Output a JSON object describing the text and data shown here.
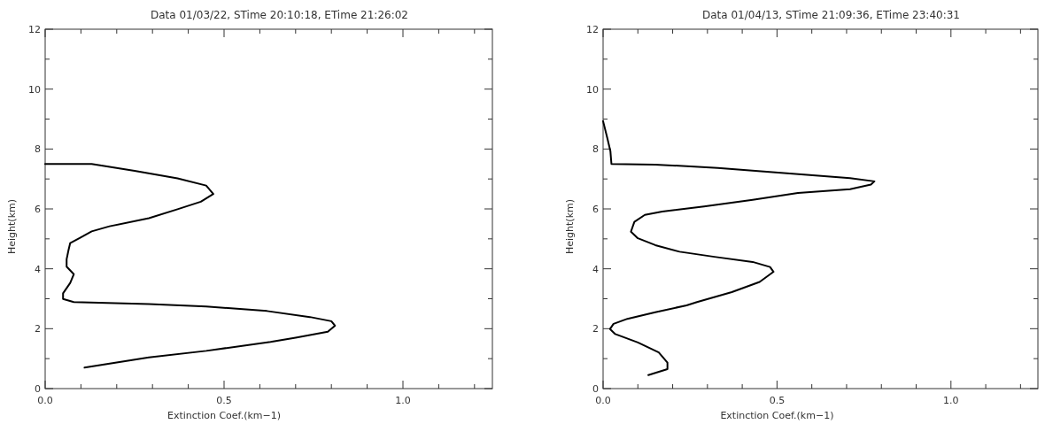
{
  "chart_data": [
    {
      "type": "line",
      "title": "Data 01/03/22, STime 20:10:18, ETime 21:26:02",
      "xlabel": "Extinction Coef.(km−1)",
      "ylabel": "Height(km)",
      "xlim": [
        0,
        1.25
      ],
      "ylim": [
        0,
        12
      ],
      "line_style": "solid",
      "xticks": [
        {
          "value": 0,
          "label": "0.0"
        },
        {
          "value": 0.1,
          "label": null
        },
        {
          "value": 0.2,
          "label": null
        },
        {
          "value": 0.3,
          "label": null
        },
        {
          "value": 0.4,
          "label": null
        },
        {
          "value": 0.5,
          "label": "0.5"
        },
        {
          "value": 0.6,
          "label": null
        },
        {
          "value": 0.7,
          "label": null
        },
        {
          "value": 0.8,
          "label": null
        },
        {
          "value": 0.9,
          "label": null
        },
        {
          "value": 1.0,
          "label": "1.0"
        },
        {
          "value": 1.1,
          "label": null
        },
        {
          "value": 1.2,
          "label": null
        }
      ],
      "yticks": [
        0,
        {
          "value": 1,
          "label": null
        },
        2,
        {
          "value": 3,
          "label": null
        },
        4,
        {
          "value": 5,
          "label": null
        },
        6,
        {
          "value": 7,
          "label": null
        },
        8,
        {
          "value": 9,
          "label": null
        },
        10,
        {
          "value": 11,
          "label": null
        },
        12
      ],
      "series": [
        {
          "color": "#000000",
          "x": [
            0.11,
            0.2,
            0.29,
            0.45,
            0.63,
            0.7,
            0.79,
            0.81,
            0.8,
            0.74,
            0.62,
            0.45,
            0.29,
            0.08,
            0.05,
            0.05,
            0.07,
            0.08,
            0.06,
            0.06,
            0.065,
            0.07,
            0.1,
            0.13,
            0.18,
            0.29,
            0.37,
            0.435,
            0.47,
            0.45,
            0.37,
            0.25,
            0.13,
            0.0
          ],
          "values": [
            0.7,
            0.87,
            1.04,
            1.26,
            1.56,
            1.7,
            1.9,
            2.1,
            2.25,
            2.39,
            2.59,
            2.74,
            2.82,
            2.89,
            2.99,
            3.18,
            3.53,
            3.82,
            4.07,
            4.32,
            4.61,
            4.86,
            5.05,
            5.25,
            5.42,
            5.69,
            5.99,
            6.24,
            6.5,
            6.78,
            7.02,
            7.27,
            7.5,
            7.5
          ]
        }
      ]
    },
    {
      "type": "line",
      "title": "Data 01/04/13, STime 21:09:36, ETime 23:40:31",
      "xlabel": "Extinction Coef.(km−1)",
      "ylabel": "Height(km)",
      "xlim": [
        0,
        1.25
      ],
      "ylim": [
        0,
        12
      ],
      "line_style": "solid",
      "xticks": [
        {
          "value": 0,
          "label": "0.0"
        },
        {
          "value": 0.1,
          "label": null
        },
        {
          "value": 0.2,
          "label": null
        },
        {
          "value": 0.3,
          "label": null
        },
        {
          "value": 0.4,
          "label": null
        },
        {
          "value": 0.5,
          "label": "0.5"
        },
        {
          "value": 0.6,
          "label": null
        },
        {
          "value": 0.7,
          "label": null
        },
        {
          "value": 0.8,
          "label": null
        },
        {
          "value": 0.9,
          "label": null
        },
        {
          "value": 1.0,
          "label": "1.0"
        },
        {
          "value": 1.1,
          "label": null
        },
        {
          "value": 1.2,
          "label": null
        }
      ],
      "yticks": [
        0,
        {
          "value": 1,
          "label": null
        },
        2,
        {
          "value": 3,
          "label": null
        },
        4,
        {
          "value": 5,
          "label": null
        },
        6,
        {
          "value": 7,
          "label": null
        },
        8,
        {
          "value": 9,
          "label": null
        },
        10,
        {
          "value": 11,
          "label": null
        },
        12
      ],
      "series": [
        {
          "color": "#000000",
          "x": [
            0.13,
            0.185,
            0.185,
            0.16,
            0.1,
            0.035,
            0.02,
            0.03,
            0.07,
            0.15,
            0.24,
            0.27,
            0.37,
            0.45,
            0.49,
            0.48,
            0.43,
            0.32,
            0.22,
            0.15,
            0.1,
            0.08,
            0.09,
            0.12,
            0.17,
            0.29,
            0.43,
            0.56,
            0.71,
            0.77,
            0.78,
            0.71,
            0.52,
            0.33,
            0.15,
            0.024,
            0.021,
            0.012,
            0.0
          ],
          "values": [
            0.45,
            0.65,
            0.87,
            1.21,
            1.54,
            1.82,
            1.99,
            2.16,
            2.33,
            2.55,
            2.78,
            2.89,
            3.22,
            3.56,
            3.9,
            4.06,
            4.23,
            4.4,
            4.57,
            4.79,
            5.02,
            5.24,
            5.57,
            5.8,
            5.91,
            6.08,
            6.3,
            6.53,
            6.66,
            6.81,
            6.92,
            7.03,
            7.2,
            7.37,
            7.48,
            7.5,
            7.93,
            8.37,
            8.93
          ]
        }
      ]
    }
  ]
}
